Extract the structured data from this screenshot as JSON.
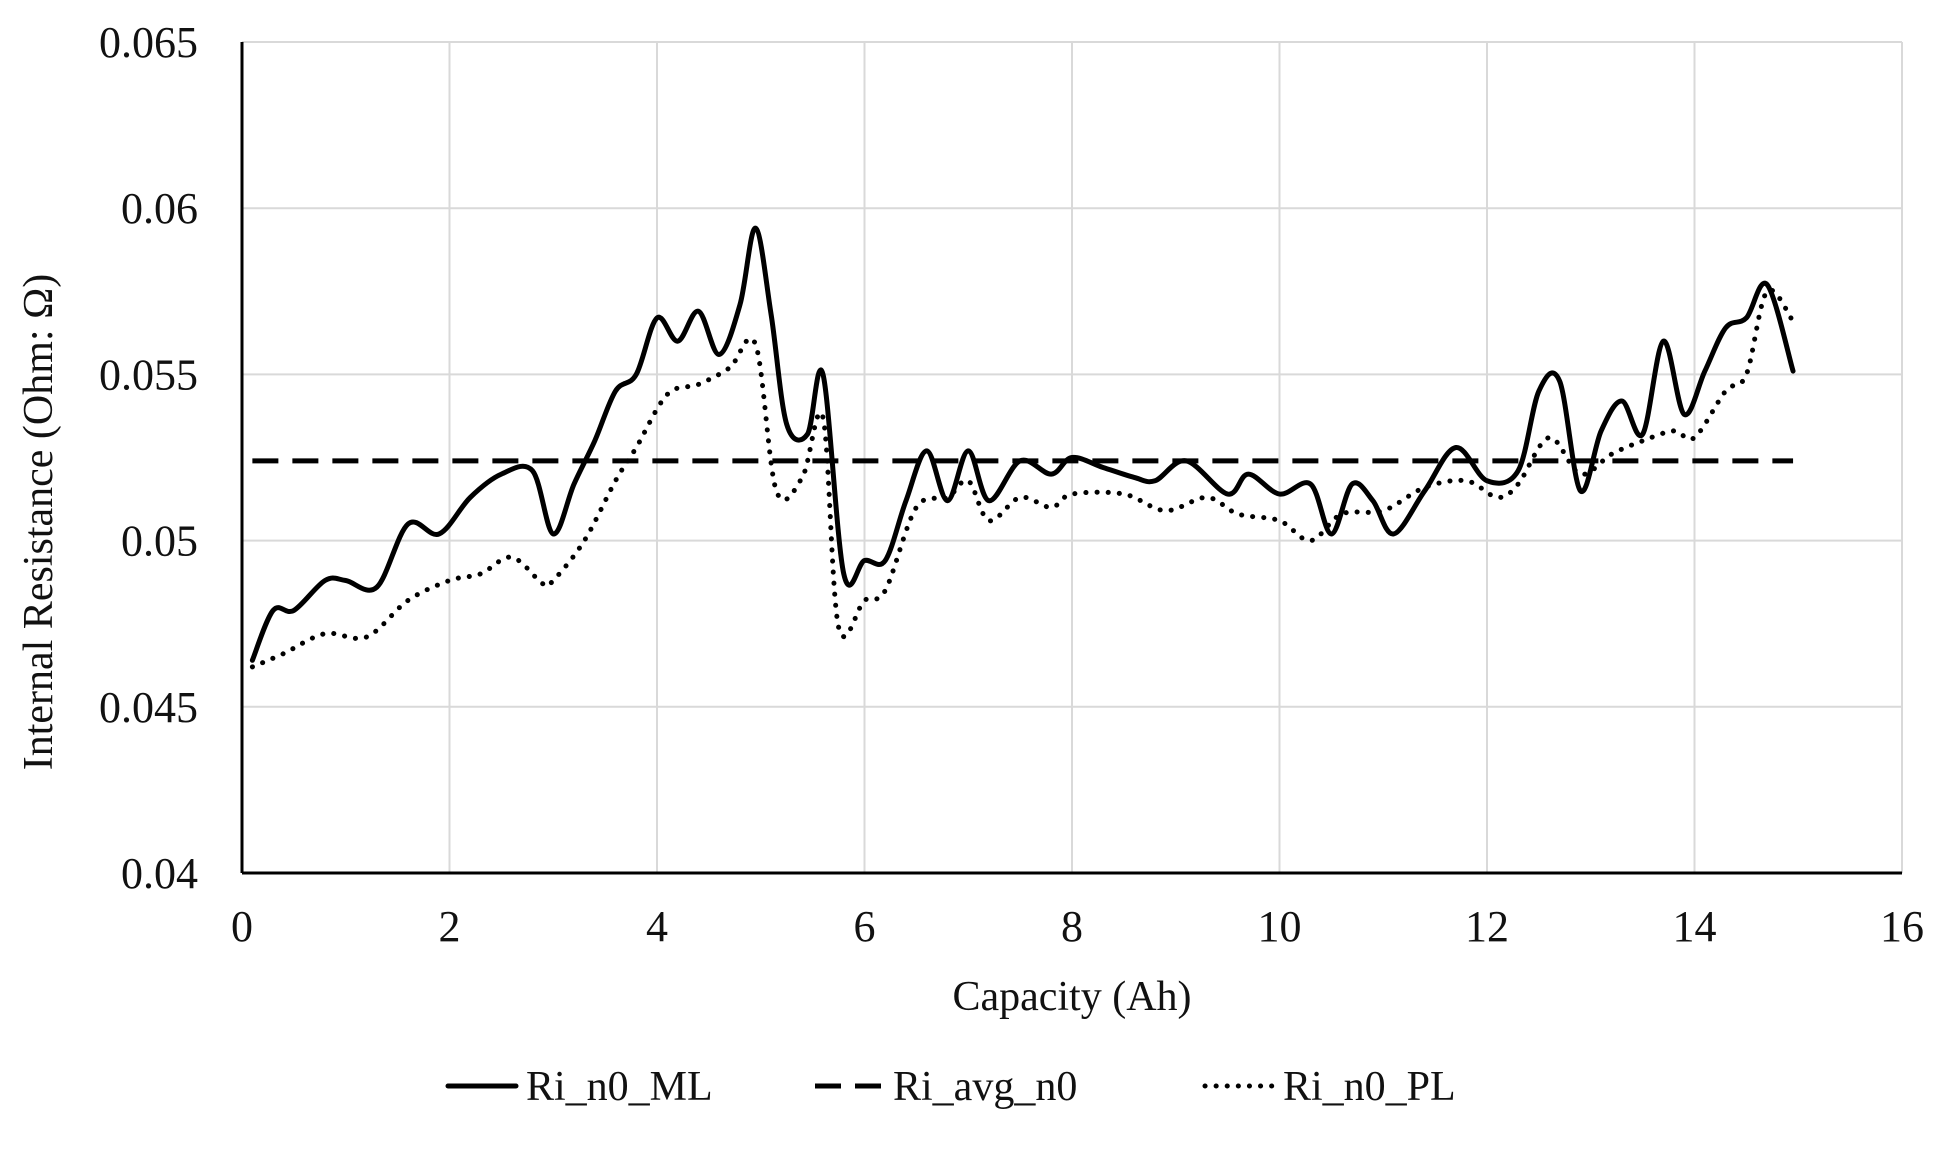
{
  "chart_data": {
    "type": "line",
    "title": "",
    "xlabel": "Capacity (Ah)",
    "ylabel": "Internal Resistance (Ohm: Ω)",
    "xlim": [
      0,
      16
    ],
    "ylim": [
      0.04,
      0.065
    ],
    "x_ticks": [
      0,
      2,
      4,
      6,
      8,
      10,
      12,
      14,
      16
    ],
    "x_tick_labels": [
      "0",
      "2",
      "4",
      "6",
      "8",
      "10",
      "12",
      "14",
      "16"
    ],
    "y_ticks": [
      0.04,
      0.045,
      0.05,
      0.055,
      0.06,
      0.065
    ],
    "y_tick_labels": [
      "0.04",
      "0.045",
      "0.05",
      "0.055",
      "0.06",
      "0.065"
    ],
    "grid": true,
    "legend_position": "bottom",
    "series": [
      {
        "name": "Ri_n0_ML",
        "style": "solid",
        "color": "#000000",
        "points": [
          [
            0.1,
            0.0464
          ],
          [
            0.3,
            0.0479
          ],
          [
            0.5,
            0.0479
          ],
          [
            0.8,
            0.0488
          ],
          [
            1.0,
            0.0488
          ],
          [
            1.3,
            0.0486
          ],
          [
            1.6,
            0.0505
          ],
          [
            1.9,
            0.0502
          ],
          [
            2.2,
            0.0513
          ],
          [
            2.5,
            0.052
          ],
          [
            2.8,
            0.0521
          ],
          [
            3.0,
            0.0502
          ],
          [
            3.2,
            0.0517
          ],
          [
            3.4,
            0.053
          ],
          [
            3.6,
            0.0545
          ],
          [
            3.8,
            0.055
          ],
          [
            4.0,
            0.0567
          ],
          [
            4.2,
            0.056
          ],
          [
            4.4,
            0.0569
          ],
          [
            4.6,
            0.0556
          ],
          [
            4.8,
            0.0571
          ],
          [
            4.95,
            0.0594
          ],
          [
            5.1,
            0.0568
          ],
          [
            5.25,
            0.0535
          ],
          [
            5.45,
            0.0532
          ],
          [
            5.6,
            0.055
          ],
          [
            5.8,
            0.049
          ],
          [
            6.0,
            0.0494
          ],
          [
            6.2,
            0.0494
          ],
          [
            6.4,
            0.0512
          ],
          [
            6.6,
            0.0527
          ],
          [
            6.8,
            0.0512
          ],
          [
            7.0,
            0.0527
          ],
          [
            7.2,
            0.0512
          ],
          [
            7.5,
            0.0524
          ],
          [
            7.8,
            0.052
          ],
          [
            8.0,
            0.0525
          ],
          [
            8.3,
            0.0522
          ],
          [
            8.6,
            0.0519
          ],
          [
            8.8,
            0.0518
          ],
          [
            9.1,
            0.0524
          ],
          [
            9.5,
            0.0514
          ],
          [
            9.7,
            0.052
          ],
          [
            10.0,
            0.0514
          ],
          [
            10.3,
            0.0517
          ],
          [
            10.5,
            0.0502
          ],
          [
            10.7,
            0.0517
          ],
          [
            10.9,
            0.0512
          ],
          [
            11.1,
            0.0502
          ],
          [
            11.4,
            0.0515
          ],
          [
            11.7,
            0.0528
          ],
          [
            12.0,
            0.0518
          ],
          [
            12.3,
            0.0521
          ],
          [
            12.5,
            0.0545
          ],
          [
            12.7,
            0.0548
          ],
          [
            12.9,
            0.0515
          ],
          [
            13.1,
            0.0533
          ],
          [
            13.3,
            0.0542
          ],
          [
            13.5,
            0.0532
          ],
          [
            13.7,
            0.056
          ],
          [
            13.9,
            0.0538
          ],
          [
            14.1,
            0.0551
          ],
          [
            14.3,
            0.0564
          ],
          [
            14.5,
            0.0567
          ],
          [
            14.7,
            0.0577
          ],
          [
            14.95,
            0.0551
          ]
        ]
      },
      {
        "name": "Ri_avg_n0",
        "style": "dashed",
        "color": "#000000",
        "points": [
          [
            0.1,
            0.0524
          ],
          [
            14.95,
            0.0524
          ]
        ]
      },
      {
        "name": "Ri_n0_PL",
        "style": "dotted",
        "color": "#000000",
        "points": [
          [
            0.1,
            0.0462
          ],
          [
            0.4,
            0.0466
          ],
          [
            0.8,
            0.0472
          ],
          [
            1.2,
            0.0471
          ],
          [
            1.6,
            0.0482
          ],
          [
            2.0,
            0.0488
          ],
          [
            2.3,
            0.049
          ],
          [
            2.6,
            0.0495
          ],
          [
            2.9,
            0.0487
          ],
          [
            3.0,
            0.0488
          ],
          [
            3.3,
            0.05
          ],
          [
            3.6,
            0.0518
          ],
          [
            3.8,
            0.0528
          ],
          [
            4.1,
            0.0544
          ],
          [
            4.4,
            0.0547
          ],
          [
            4.7,
            0.0552
          ],
          [
            4.95,
            0.0559
          ],
          [
            5.15,
            0.0515
          ],
          [
            5.4,
            0.0519
          ],
          [
            5.6,
            0.0537
          ],
          [
            5.75,
            0.0474
          ],
          [
            6.0,
            0.0482
          ],
          [
            6.2,
            0.0485
          ],
          [
            6.5,
            0.051
          ],
          [
            6.8,
            0.0513
          ],
          [
            7.0,
            0.0518
          ],
          [
            7.2,
            0.0506
          ],
          [
            7.5,
            0.0513
          ],
          [
            7.8,
            0.051
          ],
          [
            8.0,
            0.0514
          ],
          [
            8.5,
            0.0514
          ],
          [
            8.9,
            0.0509
          ],
          [
            9.3,
            0.0513
          ],
          [
            9.6,
            0.0508
          ],
          [
            10.0,
            0.0506
          ],
          [
            10.3,
            0.05
          ],
          [
            10.6,
            0.0508
          ],
          [
            11.0,
            0.0509
          ],
          [
            11.4,
            0.0516
          ],
          [
            11.8,
            0.0518
          ],
          [
            12.1,
            0.0513
          ],
          [
            12.3,
            0.0517
          ],
          [
            12.6,
            0.0531
          ],
          [
            12.9,
            0.052
          ],
          [
            13.2,
            0.0526
          ],
          [
            13.5,
            0.053
          ],
          [
            13.8,
            0.0533
          ],
          [
            14.0,
            0.0531
          ],
          [
            14.3,
            0.0545
          ],
          [
            14.5,
            0.055
          ],
          [
            14.7,
            0.0575
          ],
          [
            14.95,
            0.0566
          ]
        ]
      }
    ]
  }
}
